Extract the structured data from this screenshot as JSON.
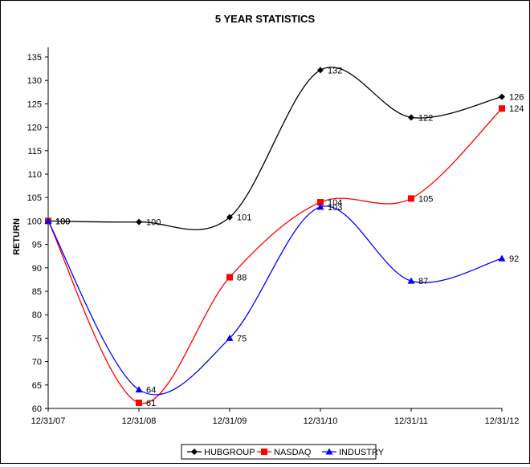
{
  "chart_data": {
    "type": "line",
    "title": "5 YEAR STATISTICS",
    "xlabel": "",
    "ylabel": "RETURN",
    "categories": [
      "12/31/07",
      "12/31/08",
      "12/31/09",
      "12/31/10",
      "12/31/11",
      "12/31/12"
    ],
    "ylim": [
      60,
      135
    ],
    "ytick_step": 5,
    "smoothed": true,
    "grid": false,
    "legend_position": "bottom",
    "series": [
      {
        "name": "HUBGROUP",
        "values": [
          100,
          100,
          101,
          132,
          122,
          126
        ],
        "plot_values": [
          100,
          99.8,
          100.8,
          132.2,
          122.1,
          126.5
        ],
        "color": "#000000",
        "marker": "diamond"
      },
      {
        "name": "NASDAQ",
        "values": [
          100,
          61,
          88,
          104,
          105,
          124
        ],
        "plot_values": [
          100,
          61.2,
          88,
          104,
          104.8,
          124
        ],
        "color": "#ff0000",
        "marker": "square"
      },
      {
        "name": "INDUSTRY",
        "values": [
          100,
          64,
          75,
          103,
          87,
          92
        ],
        "plot_values": [
          100,
          64,
          75,
          103,
          87.2,
          92
        ],
        "color": "#0000ff",
        "marker": "triangle"
      }
    ]
  }
}
